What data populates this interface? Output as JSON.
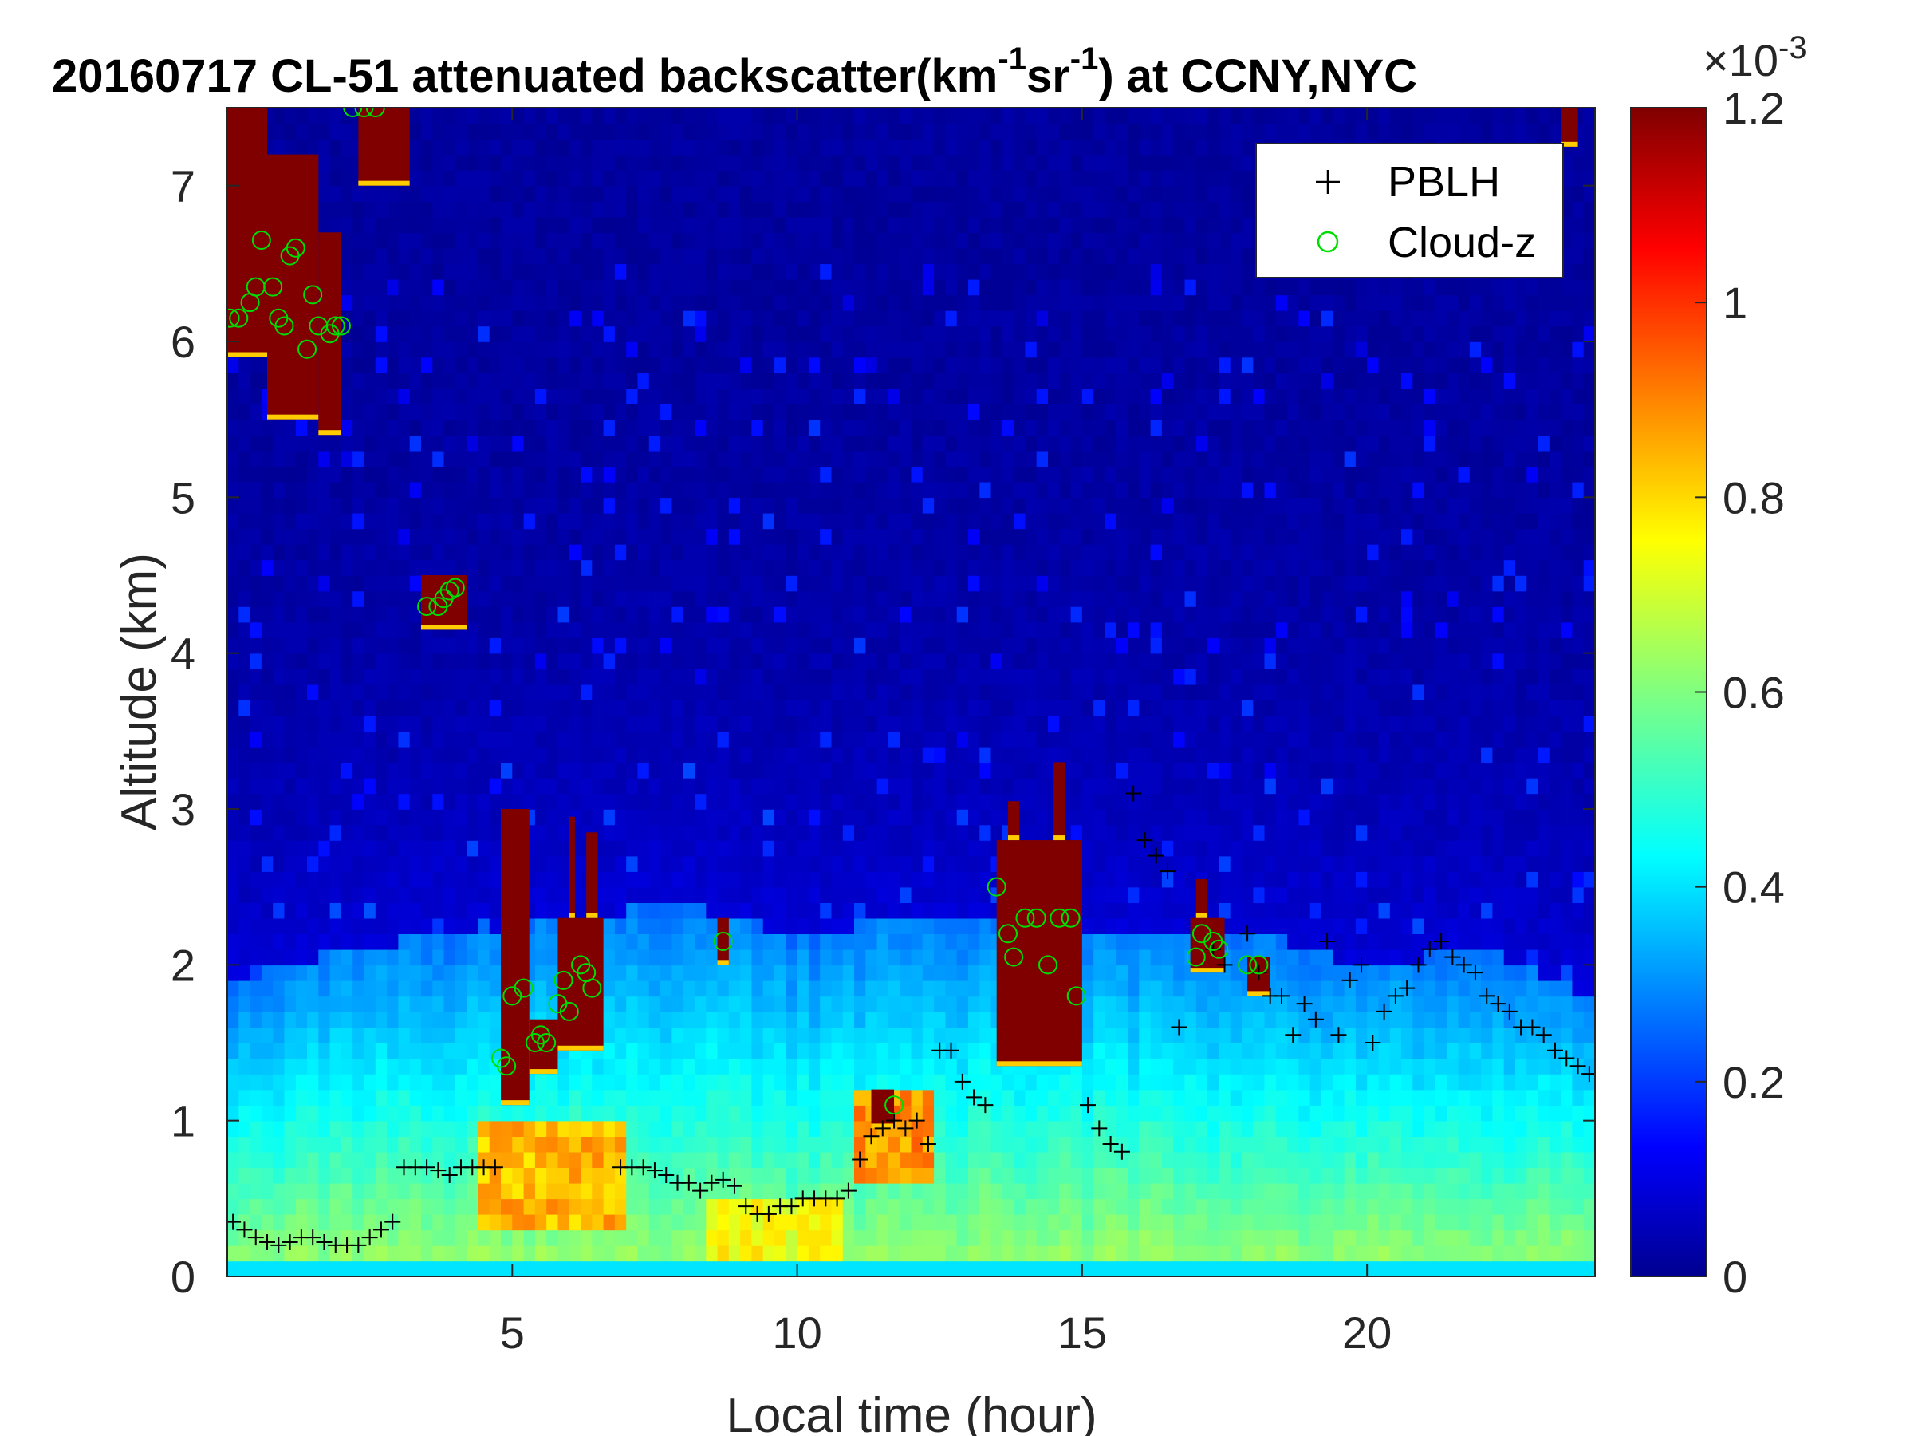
{
  "chart_data": {
    "type": "heatmap",
    "title": {
      "prefix": "20160717  CL-51 attenuated backscatter(km",
      "sup1": "-1",
      "mid": "sr",
      "sup2": "-1",
      "suffix": ") at CCNY,NYC"
    },
    "xlabel": "Local time (hour)",
    "ylabel": "Altitude (km)",
    "xlim": [
      0,
      24
    ],
    "ylim": [
      0,
      7.5
    ],
    "xticks": [
      5,
      10,
      15,
      20
    ],
    "yticks": [
      0,
      1,
      2,
      3,
      4,
      5,
      6,
      7
    ],
    "colorbar": {
      "colormap": "jet",
      "range": [
        0,
        1.2
      ],
      "ticks": [
        "0",
        "0.2",
        "0.4",
        "0.6",
        "0.8",
        "1",
        "1.2"
      ],
      "exponent_base": "×10",
      "exponent": "-3"
    },
    "legend": {
      "position": "top-right",
      "entries": [
        {
          "label": "PBLH",
          "marker": "plus",
          "color": "#000000"
        },
        {
          "label": "Cloud-z",
          "marker": "circle",
          "color": "#00dd00"
        }
      ]
    },
    "background_profile": {
      "description_free": true,
      "mixed_layer_top_km": [
        [
          0,
          1.9
        ],
        [
          2,
          2.1
        ],
        [
          4,
          2.2
        ],
        [
          6,
          2.3
        ],
        [
          8,
          2.4
        ],
        [
          10,
          2.2
        ],
        [
          12,
          2.3
        ],
        [
          14,
          2.3
        ],
        [
          16,
          2.2
        ],
        [
          18,
          2.2
        ],
        [
          20,
          2.0
        ],
        [
          22,
          2.1
        ],
        [
          24,
          1.8
        ]
      ],
      "surface_hotspots": [
        {
          "x0": 4.5,
          "x1": 7.0,
          "y0": 0.3,
          "y1": 1.0,
          "value": 0.9
        },
        {
          "x0": 8.5,
          "x1": 10.8,
          "y0": 0.1,
          "y1": 0.5,
          "value": 0.8
        },
        {
          "x0": 11.0,
          "x1": 12.3,
          "y0": 0.6,
          "y1": 1.2,
          "value": 0.95
        }
      ]
    },
    "cloud_patches": [
      {
        "x0": 0.0,
        "x1": 0.7,
        "y0": 5.9,
        "y1": 7.5
      },
      {
        "x0": 0.7,
        "x1": 1.6,
        "y0": 5.5,
        "y1": 7.2
      },
      {
        "x0": 1.6,
        "x1": 2.0,
        "y0": 5.4,
        "y1": 6.7
      },
      {
        "x0": 2.3,
        "x1": 3.2,
        "y0": 7.0,
        "y1": 7.5
      },
      {
        "x0": 3.4,
        "x1": 4.2,
        "y0": 4.15,
        "y1": 4.5
      },
      {
        "x0": 4.8,
        "x1": 5.3,
        "y0": 1.1,
        "y1": 3.0
      },
      {
        "x0": 5.3,
        "x1": 5.8,
        "y0": 1.3,
        "y1": 1.65
      },
      {
        "x0": 5.8,
        "x1": 6.6,
        "y0": 1.45,
        "y1": 2.3
      },
      {
        "x0": 6.0,
        "x1": 6.1,
        "y0": 2.3,
        "y1": 2.95
      },
      {
        "x0": 6.3,
        "x1": 6.5,
        "y0": 2.3,
        "y1": 2.85
      },
      {
        "x0": 8.6,
        "x1": 8.8,
        "y0": 2.0,
        "y1": 2.3
      },
      {
        "x0": 11.3,
        "x1": 11.7,
        "y0": 0.95,
        "y1": 1.2
      },
      {
        "x0": 13.5,
        "x1": 15.0,
        "y0": 1.35,
        "y1": 2.8
      },
      {
        "x0": 13.7,
        "x1": 13.9,
        "y0": 2.8,
        "y1": 3.05
      },
      {
        "x0": 14.5,
        "x1": 14.7,
        "y0": 2.8,
        "y1": 3.3
      },
      {
        "x0": 16.9,
        "x1": 17.5,
        "y0": 1.95,
        "y1": 2.3
      },
      {
        "x0": 17.0,
        "x1": 17.2,
        "y0": 2.3,
        "y1": 2.55
      },
      {
        "x0": 17.9,
        "x1": 18.3,
        "y0": 1.8,
        "y1": 2.05
      },
      {
        "x0": 23.4,
        "x1": 23.7,
        "y0": 7.25,
        "y1": 7.5
      }
    ],
    "series": [
      {
        "name": "PBLH",
        "x": [
          0.1,
          0.3,
          0.5,
          0.7,
          0.9,
          1.1,
          1.3,
          1.5,
          1.7,
          1.9,
          2.1,
          2.3,
          2.5,
          2.7,
          2.9,
          3.1,
          3.3,
          3.5,
          3.7,
          3.9,
          4.1,
          4.3,
          4.5,
          4.7,
          6.9,
          7.1,
          7.3,
          7.5,
          7.7,
          7.9,
          8.1,
          8.3,
          8.5,
          8.7,
          8.9,
          9.1,
          9.3,
          9.5,
          9.7,
          9.9,
          10.1,
          10.3,
          10.5,
          10.7,
          10.9,
          11.1,
          11.3,
          11.5,
          11.7,
          11.9,
          12.1,
          12.3,
          12.5,
          12.7,
          12.9,
          13.1,
          13.3,
          15.1,
          15.3,
          15.5,
          15.7,
          15.9,
          16.1,
          16.3,
          16.5,
          16.7,
          17.3,
          17.5,
          17.9,
          18.1,
          18.3,
          18.5,
          18.7,
          18.9,
          19.1,
          19.3,
          19.5,
          19.7,
          19.9,
          20.1,
          20.3,
          20.5,
          20.7,
          20.9,
          21.1,
          21.3,
          21.5,
          21.7,
          21.9,
          22.1,
          22.3,
          22.5,
          22.7,
          22.9,
          23.1,
          23.3,
          23.5,
          23.7,
          23.9
        ],
        "y": [
          0.35,
          0.3,
          0.25,
          0.22,
          0.2,
          0.22,
          0.25,
          0.25,
          0.22,
          0.2,
          0.2,
          0.2,
          0.25,
          0.3,
          0.35,
          0.7,
          0.7,
          0.7,
          0.68,
          0.65,
          0.7,
          0.7,
          0.7,
          0.7,
          0.7,
          0.7,
          0.7,
          0.68,
          0.65,
          0.6,
          0.6,
          0.55,
          0.6,
          0.62,
          0.58,
          0.45,
          0.4,
          0.4,
          0.45,
          0.45,
          0.5,
          0.5,
          0.5,
          0.5,
          0.55,
          0.75,
          0.9,
          0.95,
          1.0,
          0.95,
          1.0,
          0.85,
          1.45,
          1.45,
          1.25,
          1.15,
          1.1,
          1.1,
          0.95,
          0.85,
          0.8,
          3.1,
          2.8,
          2.7,
          2.6,
          1.6,
          2.1,
          2.0,
          2.2,
          1.95,
          1.8,
          1.8,
          1.55,
          1.75,
          1.65,
          2.15,
          1.55,
          1.9,
          2.0,
          1.5,
          1.7,
          1.8,
          1.85,
          2.0,
          2.1,
          2.15,
          2.05,
          2.0,
          1.95,
          1.8,
          1.75,
          1.7,
          1.6,
          1.6,
          1.55,
          1.45,
          1.4,
          1.35,
          1.3
        ]
      },
      {
        "name": "Cloud-z",
        "x": [
          0.05,
          0.2,
          0.4,
          0.5,
          0.6,
          0.8,
          0.9,
          1.0,
          1.1,
          1.2,
          1.4,
          1.5,
          1.6,
          1.8,
          1.9,
          2.0,
          2.2,
          2.4,
          2.6,
          3.5,
          3.7,
          3.8,
          3.9,
          4.0,
          4.8,
          4.9,
          5.0,
          5.2,
          5.4,
          5.5,
          5.6,
          5.8,
          5.9,
          6.0,
          6.2,
          6.3,
          6.4,
          8.7,
          11.7,
          13.5,
          13.7,
          13.8,
          14.0,
          14.2,
          14.4,
          14.6,
          14.8,
          14.9,
          17.0,
          17.1,
          17.3,
          17.4,
          17.9,
          18.1
        ],
        "y": [
          6.15,
          6.15,
          6.25,
          6.35,
          6.65,
          6.35,
          6.15,
          6.1,
          6.55,
          6.6,
          5.95,
          6.3,
          6.1,
          6.05,
          6.1,
          6.1,
          7.5,
          7.5,
          7.5,
          4.3,
          4.3,
          4.35,
          4.4,
          4.42,
          1.4,
          1.35,
          1.8,
          1.85,
          1.5,
          1.55,
          1.5,
          1.75,
          1.9,
          1.7,
          2.0,
          1.95,
          1.85,
          2.15,
          1.1,
          2.5,
          2.2,
          2.05,
          2.3,
          2.3,
          2.0,
          2.3,
          2.3,
          1.8,
          2.05,
          2.2,
          2.15,
          2.1,
          2.0,
          2.0
        ]
      }
    ]
  }
}
